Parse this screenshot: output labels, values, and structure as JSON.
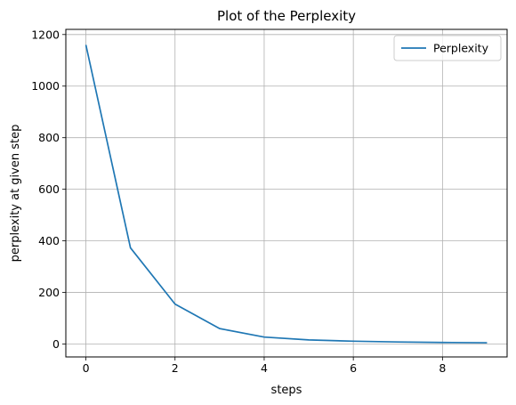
{
  "chart_data": {
    "type": "line",
    "title": "Plot of the Perplexity",
    "xlabel": "steps",
    "ylabel": "perplexity at given step",
    "x": [
      0,
      1,
      2,
      3,
      4,
      5,
      6,
      7,
      8,
      9
    ],
    "series": [
      {
        "name": "Perplexity",
        "color": "#1f77b4",
        "values": [
          1160,
          373,
          155,
          60,
          27,
          16,
          11,
          8,
          6,
          5
        ]
      }
    ],
    "xlim": [
      -0.45,
      9.45
    ],
    "ylim": [
      -50,
      1220
    ],
    "xticks": [
      0,
      2,
      4,
      6,
      8
    ],
    "xtick_labels": [
      "0",
      "2",
      "4",
      "6",
      "8"
    ],
    "yticks": [
      0,
      200,
      400,
      600,
      800,
      1000,
      1200
    ],
    "ytick_labels": [
      "0",
      "200",
      "400",
      "600",
      "800",
      "1000",
      "1200"
    ],
    "grid": true,
    "legend_position": "top-right"
  }
}
